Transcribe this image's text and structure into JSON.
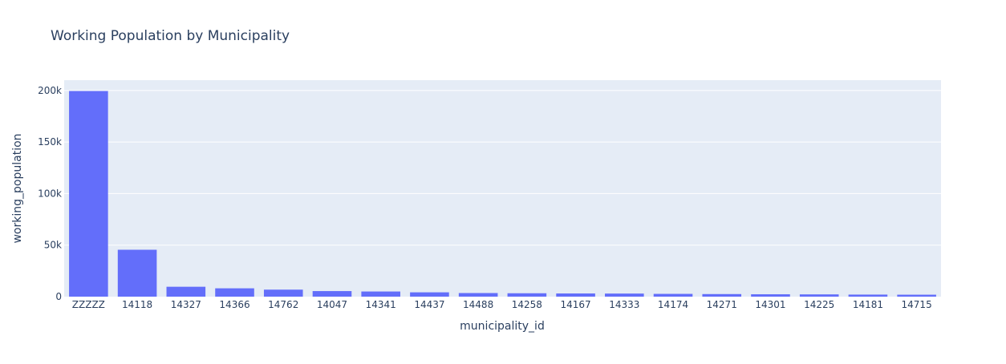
{
  "chart_data": {
    "type": "bar",
    "title": "Working Population by Municipality",
    "xlabel": "municipality_id",
    "ylabel": "working_population",
    "categories": [
      "ZZZZZ",
      "14118",
      "14327",
      "14366",
      "14762",
      "14047",
      "14341",
      "14437",
      "14488",
      "14258",
      "14167",
      "14333",
      "14174",
      "14271",
      "14301",
      "14225",
      "14181",
      "14715"
    ],
    "values": [
      199500,
      45500,
      9600,
      8100,
      6800,
      5400,
      5000,
      4200,
      3500,
      3300,
      3100,
      3000,
      2700,
      2500,
      2300,
      2200,
      2000,
      1900
    ],
    "ylim": [
      0,
      210000
    ],
    "yticks": [
      0,
      50000,
      100000,
      150000,
      200000
    ],
    "ytick_labels": [
      "0",
      "50k",
      "100k",
      "150k",
      "200k"
    ],
    "grid": true,
    "colors": {
      "bar": "#636efa",
      "plot_bg": "#e5ecf6",
      "grid": "#ffffff",
      "text": "#2a3f5f"
    }
  }
}
